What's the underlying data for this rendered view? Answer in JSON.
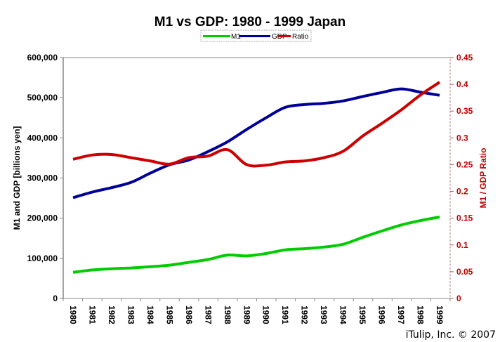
{
  "chart_data": {
    "type": "line",
    "title": "M1 vs GDP: 1980 - 1999 Japan",
    "xlabel": "",
    "ylabel": "M1 and GDP [billions yen]",
    "y2label": "M1 / GDP Ratio",
    "ylim": [
      0,
      600000
    ],
    "y2lim": [
      0,
      0.45
    ],
    "grid": false,
    "legend_position": "top-center",
    "x": [
      "1980",
      "1981",
      "1982",
      "1983",
      "1984",
      "1985",
      "1986",
      "1987",
      "1988",
      "1989",
      "1990",
      "1991",
      "1992",
      "1993",
      "1994",
      "1995",
      "1996",
      "1997",
      "1998",
      "1999"
    ],
    "y_ticks": [
      "0",
      "100,000",
      "200,000",
      "300,000",
      "400,000",
      "500,000",
      "600,000"
    ],
    "y_tick_values": [
      0,
      100000,
      200000,
      300000,
      400000,
      500000,
      600000
    ],
    "y2_ticks": [
      "0",
      "0.05",
      "0.1",
      "0.15",
      "0.2",
      "0.25",
      "0.3",
      "0.35",
      "0.4",
      "0.45"
    ],
    "y2_tick_values": [
      0,
      0.05,
      0.1,
      0.15,
      0.2,
      0.25,
      0.3,
      0.35,
      0.4,
      0.45
    ],
    "series": [
      {
        "name": "M1",
        "axis": "left",
        "color": "#00cc00",
        "values": [
          65000,
          71000,
          74000,
          76000,
          79000,
          83000,
          90000,
          97000,
          108000,
          106000,
          112000,
          121000,
          124000,
          128000,
          135000,
          152000,
          168000,
          183000,
          194000,
          203000
        ]
      },
      {
        "name": "GDP",
        "axis": "left",
        "color": "#000099",
        "values": [
          251000,
          265000,
          276000,
          289000,
          312000,
          333000,
          345000,
          366000,
          390000,
          421000,
          450000,
          476000,
          483000,
          486000,
          492000,
          503000,
          513000,
          522000,
          514000,
          506000
        ]
      },
      {
        "name": "Ratio",
        "axis": "right",
        "color": "#cc0000",
        "values": [
          0.26,
          0.268,
          0.269,
          0.263,
          0.257,
          0.251,
          0.263,
          0.266,
          0.278,
          0.25,
          0.249,
          0.255,
          0.257,
          0.263,
          0.275,
          0.303,
          0.327,
          0.352,
          0.38,
          0.404
        ]
      }
    ]
  },
  "footer": {
    "credit": "iTulip, Inc. © 2007"
  }
}
